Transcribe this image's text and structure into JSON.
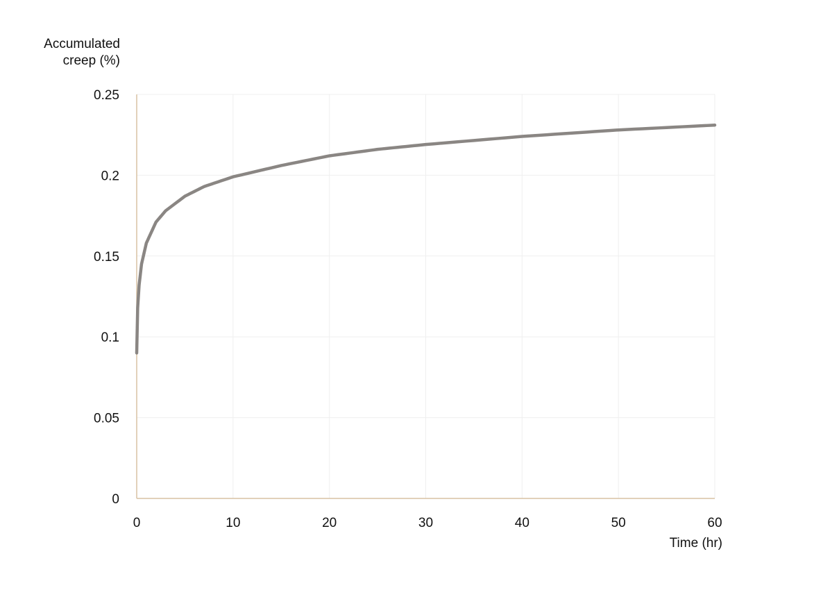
{
  "chart_data": {
    "type": "line",
    "title": "",
    "ylabel_line1": "Accumulated",
    "ylabel_line2": "creep (%)",
    "xlabel": "Time (hr)",
    "xlim": [
      0,
      60
    ],
    "ylim": [
      0,
      0.25
    ],
    "x_ticks": [
      0,
      10,
      20,
      30,
      40,
      50,
      60
    ],
    "y_ticks": [
      0,
      0.05,
      0.1,
      0.15,
      0.2,
      0.25
    ],
    "x_tick_labels": [
      "0",
      "10",
      "20",
      "30",
      "40",
      "50",
      "60"
    ],
    "y_tick_labels": [
      "0",
      "0.05",
      "0.1",
      "0.15",
      "0.2",
      "0.25"
    ],
    "grid": true,
    "legend": "none",
    "colors": {
      "line": "#8a8683",
      "axis": "#d8c2a4",
      "grid": "#efefef"
    },
    "series": [
      {
        "x": [
          0,
          0.1,
          0.25,
          0.5,
          1,
          2,
          3,
          5,
          7,
          10,
          15,
          20,
          25,
          30,
          40,
          50,
          60
        ],
        "y": [
          0.09,
          0.118,
          0.132,
          0.145,
          0.158,
          0.171,
          0.178,
          0.187,
          0.193,
          0.199,
          0.206,
          0.212,
          0.216,
          0.219,
          0.224,
          0.228,
          0.231
        ]
      }
    ]
  }
}
